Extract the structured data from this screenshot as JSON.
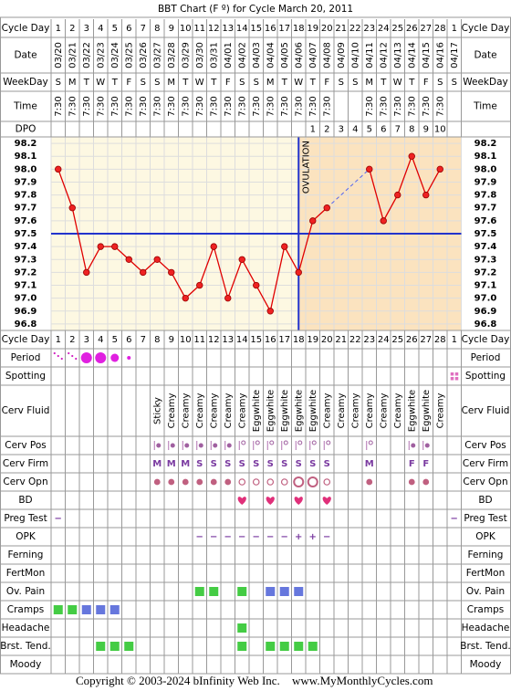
{
  "chart_data": {
    "type": "line",
    "title": "BBT Chart (F º) for Cycle March 20, 2011",
    "row_labels": {
      "cycle_days": "Cycle Day",
      "dates": "Date",
      "weekdays": "WeekDay",
      "times": "Time",
      "dpo": "DPO"
    },
    "cycle_days": [
      1,
      2,
      3,
      4,
      5,
      6,
      7,
      8,
      9,
      10,
      11,
      12,
      13,
      14,
      15,
      16,
      17,
      18,
      19,
      20,
      21,
      22,
      23,
      24,
      25,
      26,
      27,
      28,
      1
    ],
    "dates": [
      "03/20",
      "03/21",
      "03/22",
      "03/23",
      "03/24",
      "03/25",
      "03/26",
      "03/27",
      "03/28",
      "03/29",
      "03/30",
      "03/31",
      "04/01",
      "04/02",
      "04/03",
      "04/04",
      "04/05",
      "04/06",
      "04/07",
      "04/08",
      "04/09",
      "04/10",
      "04/11",
      "04/12",
      "04/13",
      "04/14",
      "04/15",
      "04/16",
      "04/17"
    ],
    "weekdays": [
      "S",
      "M",
      "T",
      "W",
      "T",
      "F",
      "S",
      "S",
      "M",
      "T",
      "W",
      "T",
      "F",
      "S",
      "S",
      "M",
      "T",
      "W",
      "T",
      "F",
      "S",
      "S",
      "M",
      "T",
      "W",
      "T",
      "F",
      "S",
      "S"
    ],
    "times": [
      "7:30",
      "7:30",
      "7:30",
      "7:30",
      "7:30",
      "7:30",
      "7:30",
      "7:30",
      "7:30",
      "7:30",
      "7:30",
      "7:30",
      "7:30",
      "7:30",
      "7:30",
      "7:30",
      "7:30",
      "7:30",
      "7:30",
      "7:30",
      null,
      null,
      "7:30",
      "7:30",
      "7:30",
      "7:30",
      "7:30",
      "7:30",
      null
    ],
    "dpo": [
      null,
      null,
      null,
      null,
      null,
      null,
      null,
      null,
      null,
      null,
      null,
      null,
      null,
      null,
      null,
      null,
      null,
      null,
      1,
      2,
      3,
      4,
      5,
      6,
      7,
      8,
      9,
      10,
      null
    ],
    "values": [
      98.0,
      97.7,
      97.2,
      97.4,
      97.4,
      97.3,
      97.2,
      97.3,
      97.2,
      97.0,
      97.1,
      97.4,
      97.0,
      97.3,
      97.1,
      96.9,
      97.4,
      97.2,
      97.6,
      97.7,
      null,
      null,
      98.0,
      97.6,
      97.8,
      98.1,
      97.8,
      98.0,
      null
    ],
    "color": "#e00000",
    "ylim": [
      96.75,
      98.25
    ],
    "yticks": [
      96.8,
      96.9,
      {
        "value": 97.0,
        "label": "97.0"
      },
      97.1,
      97.2,
      97.3,
      97.4,
      97.5,
      97.6,
      97.7,
      97.8,
      97.9,
      {
        "value": 98.0,
        "label": "98.0"
      },
      98.1,
      98.2
    ],
    "grid": true,
    "coverline": 97.5,
    "ovulation_day": 18,
    "ovulation_label": "OVULATION",
    "observations": [
      {
        "label": "Period",
        "kind": "dots",
        "values": [
          1,
          1,
          4,
          4,
          3,
          2,
          null,
          null,
          null,
          null,
          null,
          null,
          null,
          null,
          null,
          null,
          null,
          null,
          null,
          null,
          null,
          null,
          null,
          null,
          null,
          null,
          null,
          null,
          null
        ]
      },
      {
        "label": "Spotting",
        "kind": "spot",
        "values": [
          null,
          null,
          null,
          null,
          null,
          null,
          null,
          null,
          null,
          null,
          null,
          null,
          null,
          null,
          null,
          null,
          null,
          null,
          null,
          null,
          null,
          null,
          null,
          null,
          null,
          null,
          null,
          null,
          1
        ]
      },
      {
        "label": "Cerv Fluid",
        "kind": "vtext",
        "values": [
          null,
          null,
          null,
          null,
          null,
          null,
          null,
          "Sticky",
          "Creamy",
          "Creamy",
          "Creamy",
          "Creamy",
          "Creamy",
          "Creamy",
          "Eggwhite",
          "Eggwhite",
          "Eggwhite",
          "Eggwhite",
          "Eggwhite",
          "Creamy",
          "Creamy",
          "Creamy",
          "Creamy",
          "Creamy",
          "Creamy",
          "Eggwhite",
          "Eggwhite",
          "Creamy",
          null
        ]
      },
      {
        "label": "Cerv Pos",
        "kind": "pos",
        "values": [
          null,
          null,
          null,
          null,
          null,
          null,
          null,
          1,
          1,
          1,
          1,
          1,
          1,
          2,
          2,
          2,
          2,
          2,
          2,
          2,
          null,
          null,
          2,
          null,
          null,
          1,
          1,
          null,
          null
        ]
      },
      {
        "label": "Cerv Firm",
        "kind": "text",
        "values": [
          null,
          null,
          null,
          null,
          null,
          null,
          null,
          "M",
          "M",
          "M",
          "S",
          "S",
          "S",
          "S",
          "S",
          "S",
          "S",
          "S",
          "S",
          "S",
          null,
          null,
          "M",
          null,
          null,
          "F",
          "F",
          null,
          null
        ]
      },
      {
        "label": "Cerv Opn",
        "kind": "circles",
        "values": [
          null,
          null,
          null,
          null,
          null,
          null,
          null,
          1,
          1,
          1,
          1,
          1,
          1,
          2,
          2,
          2,
          2,
          3,
          3,
          2,
          null,
          null,
          1,
          null,
          null,
          1,
          1,
          null,
          null
        ]
      },
      {
        "label": "BD",
        "kind": "hearts",
        "values": [
          null,
          null,
          null,
          null,
          null,
          null,
          null,
          null,
          null,
          null,
          null,
          null,
          null,
          1,
          null,
          1,
          null,
          1,
          null,
          1,
          null,
          null,
          null,
          null,
          null,
          null,
          null,
          null,
          null
        ]
      },
      {
        "label": "Preg Test",
        "kind": "text",
        "values": [
          "−",
          null,
          null,
          null,
          null,
          null,
          null,
          null,
          null,
          null,
          null,
          null,
          null,
          null,
          null,
          null,
          null,
          null,
          null,
          null,
          null,
          null,
          null,
          null,
          null,
          null,
          null,
          null,
          "−"
        ]
      },
      {
        "label": "OPK",
        "kind": "text",
        "values": [
          null,
          null,
          null,
          null,
          null,
          null,
          null,
          null,
          null,
          null,
          "−",
          "−",
          "−",
          "−",
          "−",
          "−",
          "−",
          "+",
          "+",
          "−",
          null,
          null,
          null,
          null,
          null,
          null,
          null,
          null,
          null
        ]
      },
      {
        "label": "Ferning",
        "kind": "level",
        "values": [
          null,
          null,
          null,
          null,
          null,
          null,
          null,
          null,
          null,
          null,
          null,
          null,
          null,
          null,
          null,
          null,
          null,
          null,
          null,
          null,
          null,
          null,
          null,
          null,
          null,
          null,
          null,
          null,
          null
        ]
      },
      {
        "label": "FertMon",
        "kind": "level",
        "values": [
          null,
          null,
          null,
          null,
          null,
          null,
          null,
          null,
          null,
          null,
          null,
          null,
          null,
          null,
          null,
          null,
          null,
          null,
          null,
          null,
          null,
          null,
          null,
          null,
          null,
          null,
          null,
          null,
          null
        ]
      },
      {
        "label": "Ov. Pain",
        "kind": "level",
        "values": [
          null,
          null,
          null,
          null,
          null,
          null,
          null,
          null,
          null,
          null,
          1,
          1,
          null,
          1,
          null,
          2,
          2,
          2,
          null,
          null,
          null,
          null,
          null,
          null,
          null,
          null,
          null,
          null,
          null
        ]
      },
      {
        "label": "Cramps",
        "kind": "level",
        "values": [
          1,
          1,
          2,
          2,
          2,
          null,
          null,
          null,
          null,
          null,
          null,
          null,
          null,
          null,
          null,
          null,
          null,
          null,
          null,
          null,
          null,
          null,
          null,
          null,
          null,
          null,
          null,
          null,
          null
        ]
      },
      {
        "label": "Headache",
        "kind": "level",
        "values": [
          null,
          null,
          null,
          null,
          null,
          null,
          null,
          null,
          null,
          null,
          null,
          null,
          null,
          1,
          null,
          null,
          null,
          null,
          null,
          null,
          null,
          null,
          null,
          null,
          null,
          null,
          null,
          null,
          null
        ]
      },
      {
        "label": "Brst. Tend.",
        "kind": "level",
        "values": [
          null,
          null,
          null,
          1,
          1,
          1,
          null,
          null,
          null,
          null,
          null,
          null,
          null,
          1,
          null,
          1,
          1,
          1,
          1,
          null,
          null,
          null,
          null,
          null,
          null,
          null,
          null,
          null,
          null
        ]
      },
      {
        "label": "Moody",
        "kind": "level",
        "values": [
          null,
          null,
          null,
          null,
          null,
          null,
          null,
          null,
          null,
          null,
          null,
          null,
          null,
          null,
          null,
          null,
          null,
          null,
          null,
          null,
          null,
          null,
          null,
          null,
          null,
          null,
          null,
          null,
          null
        ]
      }
    ]
  },
  "footer": {
    "copyright": "Copyright © 2003-2024 bInfinity Web Inc.",
    "site": "www.MyMonthlyCycles.com"
  }
}
